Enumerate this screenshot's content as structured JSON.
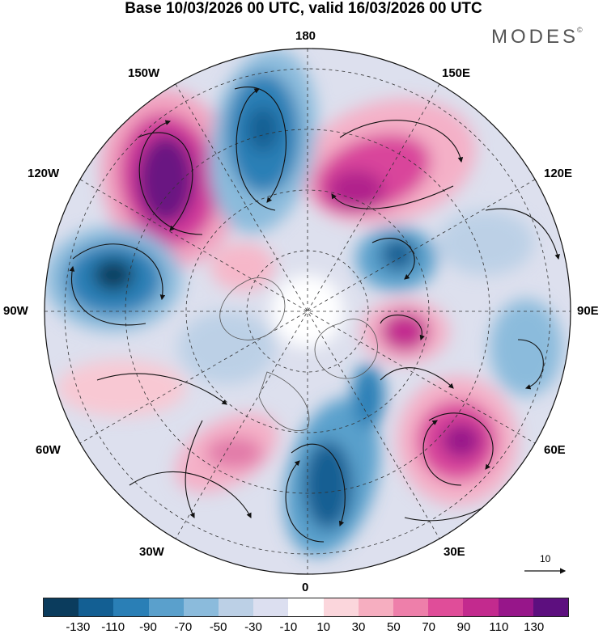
{
  "title": "Base 10/03/2026 00 UTC, valid 16/03/2026 00 UTC",
  "brand": {
    "name": "MODES",
    "mark": "©"
  },
  "longitude_labels": {
    "top": "180",
    "bottom": "0",
    "left": "90W",
    "right": "90E",
    "nw150": "150W",
    "ne150": "150E",
    "w120": "120W",
    "e120": "120E",
    "w60": "60W",
    "e60": "60E",
    "sw30": "30W",
    "se30": "30E"
  },
  "vector_reference": {
    "value": "10"
  },
  "colorbar": {
    "colors": [
      "#0b3c5d",
      "#135f93",
      "#2a7fb6",
      "#5aa0cc",
      "#8bbbdc",
      "#bcd0e6",
      "#dcdff0",
      "#ffffff",
      "#fbd6dc",
      "#f6aec0",
      "#ee7faa",
      "#e04d99",
      "#c32a8e",
      "#97168a",
      "#5d0f7f"
    ],
    "ticks": [
      "-130",
      "-110",
      "-90",
      "-70",
      "-50",
      "-30",
      "-10",
      "10",
      "30",
      "50",
      "70",
      "90",
      "110",
      "130"
    ]
  }
}
